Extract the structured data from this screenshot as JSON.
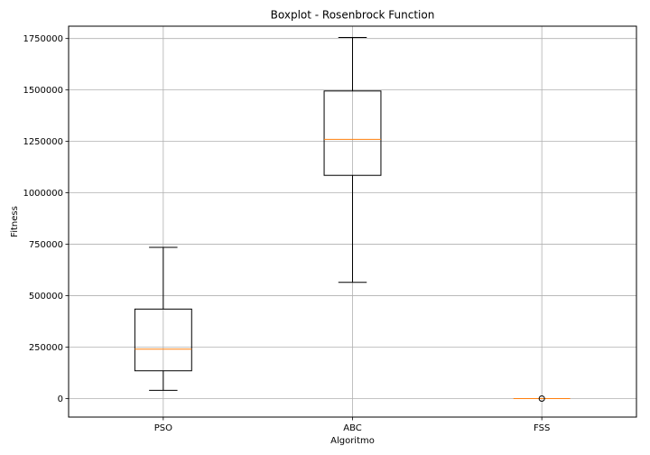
{
  "chart_data": {
    "type": "boxplot",
    "title": "Boxplot - Rosenbrock Function",
    "xlabel": "Algoritmo",
    "ylabel": "Fitness",
    "ylim": [
      -90000,
      1810000
    ],
    "grid": true,
    "yticks": [
      0,
      250000,
      500000,
      750000,
      1000000,
      1250000,
      1500000,
      1750000
    ],
    "ytick_labels": [
      "0",
      "250000",
      "500000",
      "750000",
      "1000000",
      "1250000",
      "1500000",
      "1750000"
    ],
    "categories": [
      "PSO",
      "ABC",
      "FSS"
    ],
    "boxes": [
      {
        "name": "PSO",
        "whisker_low": 40000,
        "q1": 135000,
        "median": 240000,
        "q3": 435000,
        "whisker_high": 735000,
        "outliers": []
      },
      {
        "name": "ABC",
        "whisker_low": 565000,
        "q1": 1085000,
        "median": 1260000,
        "q3": 1495000,
        "whisker_high": 1755000,
        "outliers": []
      },
      {
        "name": "FSS",
        "whisker_low": 0,
        "q1": 0,
        "median": 0,
        "q3": 0,
        "whisker_high": 0,
        "outliers": [
          0
        ]
      }
    ],
    "colors": {
      "box": "#000000",
      "median": "#ff7f0e",
      "grid": "#b0b0b0"
    }
  }
}
